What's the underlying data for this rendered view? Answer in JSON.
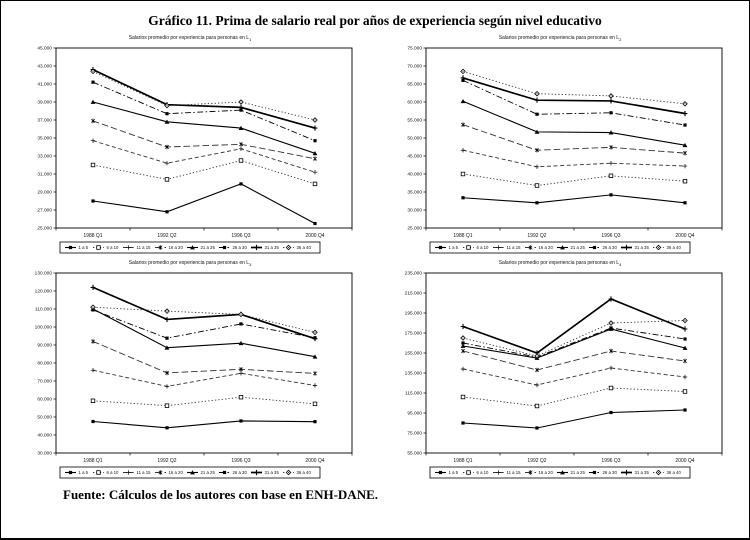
{
  "page": {
    "title": "Gráfico 11. Prima de salario real por años de experiencia según nivel educativo",
    "source_note": "Fuente: Cálculos de los autores con base en ENH-DANE."
  },
  "legend_labels": [
    "1 a 5",
    "6 a 10",
    "11 a 15",
    "16 a 20",
    "21 a 25",
    "26 a 30",
    "31 a 35",
    "36 a 40"
  ],
  "chart_data": [
    {
      "type": "line",
      "title": "Salarios promedio por experiencia para personas en L",
      "title_sub": "1",
      "categories": [
        "1988 Q1",
        "1992 Q2",
        "1996 Q3",
        "2000 Q4"
      ],
      "ylim": [
        25000,
        45000
      ],
      "ytick_step": 2000,
      "legend_position": "bottom",
      "grid": false,
      "series": [
        {
          "name": "1 a 5",
          "line": "solid",
          "marker": "filled-square",
          "values": [
            28000,
            26800,
            29900,
            25500
          ]
        },
        {
          "name": "6 a 10",
          "line": "dotted",
          "marker": "open-square",
          "values": [
            32000,
            30400,
            32500,
            29900
          ]
        },
        {
          "name": "11 a 15",
          "line": "dashed",
          "marker": "plus",
          "values": [
            34700,
            32200,
            33800,
            31200
          ]
        },
        {
          "name": "16 a 20",
          "line": "long-dash",
          "marker": "asterisk",
          "values": [
            36900,
            34000,
            34300,
            32700
          ]
        },
        {
          "name": "21 a 25",
          "line": "solid",
          "marker": "filled-triangle",
          "values": [
            39000,
            36800,
            36100,
            33300
          ]
        },
        {
          "name": "26 a 30",
          "line": "dash-dot",
          "marker": "filled-square",
          "values": [
            41200,
            37700,
            38100,
            34700
          ]
        },
        {
          "name": "31 a 35",
          "line": "solid-thick",
          "marker": "tick",
          "values": [
            42600,
            38700,
            38400,
            36100
          ]
        },
        {
          "name": "36 a 40",
          "line": "dotted",
          "marker": "open-diamond",
          "values": [
            42400,
            38600,
            39000,
            37000
          ]
        }
      ]
    },
    {
      "type": "line",
      "title": "Salarios promedio por experiencia para personas en L",
      "title_sub": "2",
      "categories": [
        "1988 Q1",
        "1992 Q2",
        "1996 Q3",
        "2000 Q4"
      ],
      "ylim": [
        25000,
        75000
      ],
      "ytick_step": 5000,
      "legend_position": "bottom",
      "grid": false,
      "series": [
        {
          "name": "1 a 5",
          "line": "solid",
          "marker": "filled-square",
          "values": [
            33400,
            32000,
            34200,
            32000
          ]
        },
        {
          "name": "6 a 10",
          "line": "dotted",
          "marker": "open-square",
          "values": [
            40000,
            36800,
            39500,
            38000
          ]
        },
        {
          "name": "11 a 15",
          "line": "dashed",
          "marker": "plus",
          "values": [
            46600,
            42000,
            43000,
            42200
          ]
        },
        {
          "name": "16 a 20",
          "line": "long-dash",
          "marker": "asterisk",
          "values": [
            53700,
            46600,
            47400,
            45800
          ]
        },
        {
          "name": "21 a 25",
          "line": "solid",
          "marker": "filled-triangle",
          "values": [
            60200,
            51700,
            51500,
            48000
          ]
        },
        {
          "name": "26 a 30",
          "line": "dash-dot",
          "marker": "filled-square",
          "values": [
            66000,
            56600,
            57000,
            53600
          ]
        },
        {
          "name": "31 a 35",
          "line": "solid-thick",
          "marker": "tick",
          "values": [
            66700,
            60500,
            60300,
            56800
          ]
        },
        {
          "name": "36 a 40",
          "line": "dotted",
          "marker": "open-diamond",
          "values": [
            68500,
            62300,
            61700,
            59500
          ]
        }
      ]
    },
    {
      "type": "line",
      "title": "Salarios promedio por experiencia para personas en L",
      "title_sub": "3",
      "categories": [
        "1988 Q1",
        "1992 Q2",
        "1996 Q3",
        "2000 Q4"
      ],
      "ylim": [
        30000,
        130000
      ],
      "ytick_step": 10000,
      "legend_position": "bottom",
      "grid": false,
      "series": [
        {
          "name": "1 a 5",
          "line": "solid",
          "marker": "filled-square",
          "values": [
            47500,
            44000,
            47800,
            47400
          ]
        },
        {
          "name": "6 a 10",
          "line": "dotted",
          "marker": "open-square",
          "values": [
            59000,
            56300,
            61000,
            57300
          ]
        },
        {
          "name": "11 a 15",
          "line": "dashed",
          "marker": "plus",
          "values": [
            76000,
            67000,
            74300,
            67500
          ]
        },
        {
          "name": "16 a 20",
          "line": "long-dash",
          "marker": "asterisk",
          "values": [
            92000,
            74500,
            76500,
            74200
          ]
        },
        {
          "name": "21 a 25",
          "line": "solid",
          "marker": "filled-triangle",
          "values": [
            110000,
            88500,
            91000,
            83500
          ]
        },
        {
          "name": "26 a 30",
          "line": "dash-dot",
          "marker": "filled-square",
          "values": [
            109500,
            93800,
            101700,
            94000
          ]
        },
        {
          "name": "31 a 35",
          "line": "solid-thick",
          "marker": "tick",
          "values": [
            122000,
            104200,
            107000,
            93500
          ]
        },
        {
          "name": "36 a 40",
          "line": "dotted",
          "marker": "open-diamond",
          "values": [
            111000,
            108800,
            107000,
            97000
          ]
        }
      ]
    },
    {
      "type": "line",
      "title": "Salarios promedio por experiencia para personas en L",
      "title_sub": "4",
      "categories": [
        "1988 Q1",
        "1992 Q2",
        "1996 Q3",
        "2000 Q4"
      ],
      "ylim": [
        55000,
        235000
      ],
      "ytick_step": 20000,
      "legend_position": "bottom",
      "grid": false,
      "series": [
        {
          "name": "1 a 5",
          "line": "solid",
          "marker": "filled-square",
          "values": [
            85000,
            80000,
            95500,
            98000
          ]
        },
        {
          "name": "6 a 10",
          "line": "dotted",
          "marker": "open-square",
          "values": [
            111000,
            102000,
            120000,
            116500
          ]
        },
        {
          "name": "11 a 15",
          "line": "dashed",
          "marker": "plus",
          "values": [
            139000,
            123000,
            140000,
            131000
          ]
        },
        {
          "name": "16 a 20",
          "line": "long-dash",
          "marker": "asterisk",
          "values": [
            157000,
            138000,
            157000,
            147000
          ]
        },
        {
          "name": "21 a 25",
          "line": "solid",
          "marker": "filled-triangle",
          "values": [
            162000,
            150000,
            179000,
            160000
          ]
        },
        {
          "name": "26 a 30",
          "line": "dash-dot",
          "marker": "filled-square",
          "values": [
            165000,
            151000,
            180000,
            169000
          ]
        },
        {
          "name": "31 a 35",
          "line": "solid-thick",
          "marker": "tick",
          "values": [
            181500,
            155000,
            209000,
            179000
          ]
        },
        {
          "name": "36 a 40",
          "line": "dotted",
          "marker": "open-diamond",
          "values": [
            170000,
            152000,
            185000,
            187500
          ]
        }
      ]
    }
  ]
}
